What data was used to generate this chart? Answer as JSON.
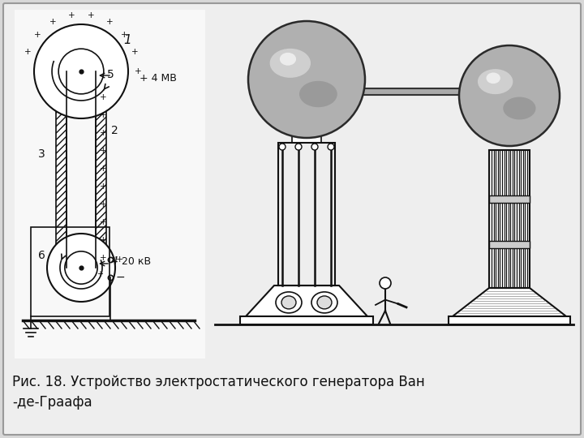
{
  "bg_color": "#d8d8d8",
  "panel_color": "#eeeeee",
  "caption": "Рис. 18. Устройство электростатического генератора Ван\n-де-Граафа",
  "caption_fontsize": 12,
  "line_color": "#111111",
  "sphere_base": "#b8b8b8",
  "sphere_highlight": "#e8e8e8",
  "sphere_dark": "#787878",
  "bar_color": "#aaaaaa"
}
